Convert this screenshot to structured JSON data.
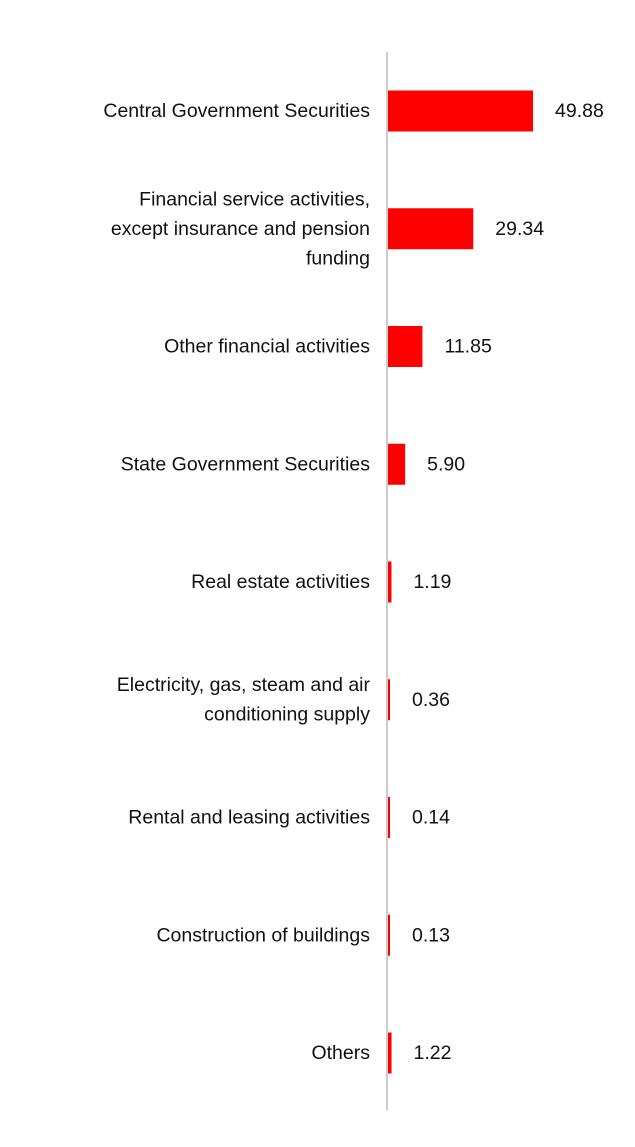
{
  "chart_data": {
    "type": "bar",
    "orientation": "horizontal",
    "categories": [
      "Central Government Securities",
      "Financial service activities, except insurance and pension funding",
      "Other financial activities",
      "State Government Securities",
      "Real estate activities",
      "Electricity, gas, steam and air conditioning supply",
      "Rental and leasing activities",
      "Construction of buildings",
      "Others"
    ],
    "category_lines": [
      [
        "Central Government Securities"
      ],
      [
        "Financial service activities,",
        "except insurance and pension",
        "funding"
      ],
      [
        "Other financial activities"
      ],
      [
        "State Government Securities"
      ],
      [
        "Real estate activities"
      ],
      [
        "Electricity, gas, steam and air",
        "conditioning supply"
      ],
      [
        "Rental and leasing activities"
      ],
      [
        "Construction of buildings"
      ],
      [
        "Others"
      ]
    ],
    "values": [
      49.88,
      29.34,
      11.85,
      5.9,
      1.19,
      0.36,
      0.14,
      0.13,
      1.22
    ],
    "value_labels": [
      "49.88",
      "29.34",
      "11.85",
      "5.90",
      "1.19",
      "0.36",
      "0.14",
      "0.13",
      "1.22"
    ],
    "title": "",
    "xlabel": "",
    "ylabel": "",
    "xlim": [
      0,
      50
    ],
    "grid": false,
    "legend": "none",
    "bar_color": "#ff0000",
    "axis_color": "#cccccc"
  }
}
